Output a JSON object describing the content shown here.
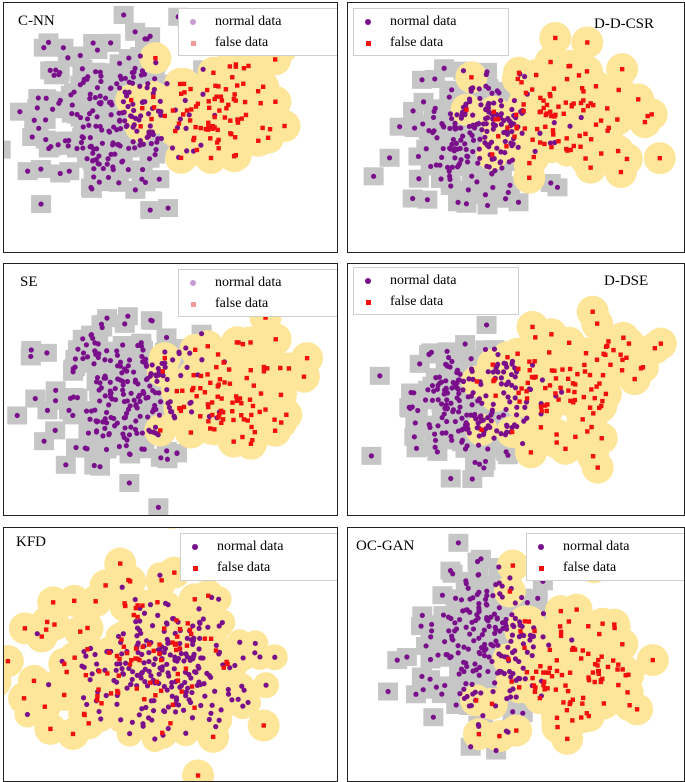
{
  "colors": {
    "normal": "#7a0f8c",
    "false": "#f20f0f",
    "normal_faded": "#c79bd3",
    "false_faded": "#f59a9a",
    "normal_region": "#c6c6c6",
    "false_region": "#fde69a",
    "false_region_edge": "#f5d97a"
  },
  "chart_data": [
    {
      "type": "scatter",
      "title": "C-NN",
      "legend_position": "top-right",
      "legend_faded": true,
      "legend": [
        "normal data",
        "false data"
      ],
      "xlim": [
        -5,
        5
      ],
      "ylim": [
        -3.5,
        3.5
      ],
      "normal_center": [
        -1.8,
        0.3
      ],
      "false_center": [
        1.4,
        0.5
      ],
      "normal_spread": [
        1.6,
        1.4
      ],
      "false_spread": [
        1.3,
        1.0
      ],
      "normal_count": 230,
      "false_count": 90,
      "regions": "split"
    },
    {
      "type": "scatter",
      "title": "D-D-CSR",
      "legend_position": "top-left",
      "legend_faded": false,
      "legend": [
        "normal data",
        "false data"
      ],
      "xlim": [
        -5,
        5
      ],
      "ylim": [
        -3.5,
        3.5
      ],
      "normal_center": [
        -1.2,
        -0.2
      ],
      "false_center": [
        1.6,
        0.4
      ],
      "normal_spread": [
        1.3,
        1.1
      ],
      "false_spread": [
        1.5,
        1.2
      ],
      "normal_count": 210,
      "false_count": 100,
      "regions": "split"
    },
    {
      "type": "scatter",
      "title": "SE",
      "legend_position": "top-right",
      "legend_faded": true,
      "legend": [
        "normal data",
        "false data"
      ],
      "xlim": [
        -5,
        5
      ],
      "ylim": [
        -3.5,
        3.5
      ],
      "normal_center": [
        -1.4,
        0.0
      ],
      "false_center": [
        1.8,
        -0.2
      ],
      "normal_spread": [
        1.5,
        1.3
      ],
      "false_spread": [
        1.2,
        1.0
      ],
      "normal_count": 230,
      "false_count": 90,
      "regions": "split"
    },
    {
      "type": "scatter",
      "title": "D-DSE",
      "legend_position": "top-left",
      "legend_faded": false,
      "legend": [
        "normal data",
        "false data"
      ],
      "xlim": [
        -5,
        5
      ],
      "ylim": [
        -3.5,
        3.5
      ],
      "normal_center": [
        -1.2,
        -0.3
      ],
      "false_center": [
        1.5,
        0.2
      ],
      "normal_spread": [
        1.3,
        1.1
      ],
      "false_spread": [
        1.5,
        1.2
      ],
      "normal_count": 210,
      "false_count": 100,
      "regions": "split"
    },
    {
      "type": "scatter",
      "title": "KFD",
      "legend_position": "top-right",
      "legend_faded": false,
      "legend": [
        "normal data",
        "false data"
      ],
      "xlim": [
        -5,
        5
      ],
      "ylim": [
        -3.5,
        3.5
      ],
      "normal_center": [
        -0.2,
        -0.4
      ],
      "false_center": [
        -1.0,
        0.0
      ],
      "normal_spread": [
        1.7,
        1.2
      ],
      "false_spread": [
        2.4,
        1.6
      ],
      "normal_count": 240,
      "false_count": 110,
      "regions": "false-dominant"
    },
    {
      "type": "scatter",
      "title": "OC-GAN",
      "legend_position": "top-right",
      "legend_faded": false,
      "legend": [
        "normal data",
        "false data"
      ],
      "xlim": [
        -5,
        5
      ],
      "ylim": [
        -3.5,
        3.5
      ],
      "normal_center": [
        -0.9,
        0.3
      ],
      "false_center": [
        1.6,
        -0.6
      ],
      "normal_spread": [
        1.2,
        1.4
      ],
      "false_spread": [
        1.5,
        1.2
      ],
      "normal_count": 220,
      "false_count": 100,
      "regions": "split"
    }
  ]
}
